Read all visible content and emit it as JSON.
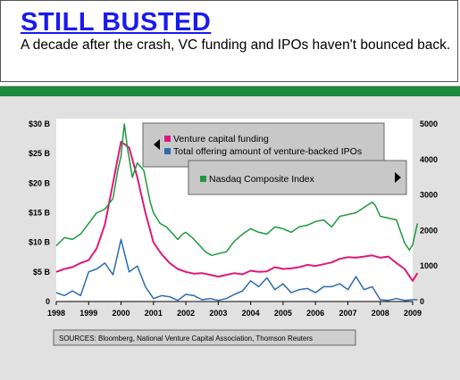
{
  "header": {
    "title": "STILL BUSTED",
    "subtitle": "A decade after the crash, VC funding and IPOs haven't bounced back."
  },
  "legend": {
    "vc": "Venture capital funding",
    "ipo": "Total offering amount of venture-backed IPOs",
    "nasdaq": "Nasdaq Composite Index"
  },
  "sources": "SOURCES: Bloomberg, National Venture Capital Association, Thomson Reuters",
  "colors": {
    "vc": "#e0187a",
    "ipo": "#2a6cb0",
    "nasdaq": "#1d9a3e",
    "band": "#1d8a3c",
    "title": "#1a1aee",
    "background": "#e1e1e1"
  },
  "chart_data": {
    "type": "line",
    "x_ticks": [
      "1998",
      "1999",
      "2000",
      "2001",
      "2002",
      "2003",
      "2004",
      "2005",
      "2006",
      "2007",
      "2008",
      "2009"
    ],
    "y_left_ticks": [
      "$30 B",
      "$25 B",
      "$20 B",
      "$15 B",
      "$10 B",
      "$5 B",
      "0"
    ],
    "y_right_ticks": [
      "5000",
      "4000",
      "3000",
      "2000",
      "1000",
      "0"
    ],
    "xlim": [
      1998,
      2009
    ],
    "ylim_left": [
      0,
      30
    ],
    "ylim_right": [
      0,
      5000
    ],
    "series": [
      {
        "name": "Venture capital funding",
        "axis": "left",
        "x": [
          1998.0,
          1998.25,
          1998.5,
          1998.75,
          1999.0,
          1999.25,
          1999.5,
          1999.75,
          2000.0,
          2000.25,
          2000.5,
          2000.75,
          2001.0,
          2001.25,
          2001.5,
          2001.75,
          2002.0,
          2002.25,
          2002.5,
          2002.75,
          2003.0,
          2003.25,
          2003.5,
          2003.75,
          2004.0,
          2004.25,
          2004.5,
          2004.75,
          2005.0,
          2005.25,
          2005.5,
          2005.75,
          2006.0,
          2006.25,
          2006.5,
          2006.75,
          2007.0,
          2007.25,
          2007.5,
          2007.75,
          2008.0,
          2008.25,
          2008.5,
          2008.75,
          2009.0,
          2009.15
        ],
        "values": [
          5.0,
          5.5,
          5.8,
          6.5,
          7.0,
          9.0,
          13.0,
          20.0,
          27.0,
          26.0,
          21.0,
          15.0,
          10.0,
          8.0,
          6.5,
          5.5,
          5.0,
          4.7,
          4.8,
          4.5,
          4.2,
          4.5,
          4.8,
          4.6,
          5.2,
          5.0,
          5.1,
          5.8,
          5.5,
          5.6,
          5.8,
          6.2,
          6.0,
          6.3,
          6.6,
          7.2,
          7.5,
          7.4,
          7.6,
          7.8,
          7.4,
          7.6,
          6.5,
          5.5,
          3.5,
          4.8
        ]
      },
      {
        "name": "Total offering amount of venture-backed IPOs",
        "axis": "left",
        "x": [
          1998.0,
          1998.25,
          1998.5,
          1998.75,
          1999.0,
          1999.25,
          1999.5,
          1999.75,
          2000.0,
          2000.25,
          2000.5,
          2000.75,
          2001.0,
          2001.25,
          2001.5,
          2001.75,
          2002.0,
          2002.25,
          2002.5,
          2002.75,
          2003.0,
          2003.25,
          2003.5,
          2003.75,
          2004.0,
          2004.25,
          2004.5,
          2004.75,
          2005.0,
          2005.25,
          2005.5,
          2005.75,
          2006.0,
          2006.25,
          2006.5,
          2006.75,
          2007.0,
          2007.25,
          2007.5,
          2007.75,
          2008.0,
          2008.25,
          2008.5,
          2008.75,
          2009.0,
          2009.15
        ],
        "values": [
          1.5,
          1.0,
          1.8,
          1.0,
          5.0,
          5.5,
          6.5,
          4.5,
          10.5,
          5.0,
          6.0,
          2.5,
          0.5,
          1.0,
          0.8,
          0.2,
          1.2,
          1.0,
          0.3,
          0.5,
          0.2,
          0.5,
          1.2,
          1.8,
          3.5,
          2.5,
          4.0,
          2.0,
          3.0,
          1.5,
          2.0,
          2.2,
          1.5,
          2.5,
          2.5,
          3.0,
          2.0,
          4.2,
          2.0,
          2.5,
          0.3,
          0.2,
          0.5,
          0.2,
          0.3,
          0.3
        ]
      },
      {
        "name": "Nasdaq Composite Index",
        "axis": "right",
        "x": [
          1998.0,
          1998.25,
          1998.5,
          1998.75,
          1999.0,
          1999.25,
          1999.5,
          1999.75,
          1999.9,
          2000.0,
          2000.1,
          2000.2,
          2000.35,
          2000.5,
          2000.7,
          2000.9,
          2001.0,
          2001.2,
          2001.4,
          2001.6,
          2001.75,
          2001.9,
          2002.0,
          2002.2,
          2002.4,
          2002.6,
          2002.8,
          2003.0,
          2003.25,
          2003.5,
          2003.75,
          2004.0,
          2004.25,
          2004.5,
          2004.75,
          2005.0,
          2005.25,
          2005.5,
          2005.75,
          2006.0,
          2006.25,
          2006.5,
          2006.75,
          2007.0,
          2007.25,
          2007.5,
          2007.75,
          2007.85,
          2008.0,
          2008.25,
          2008.5,
          2008.75,
          2008.9,
          2009.0,
          2009.15
        ],
        "values": [
          1570,
          1800,
          1750,
          1900,
          2200,
          2500,
          2600,
          2900,
          3700,
          4100,
          5000,
          4300,
          3500,
          3900,
          3700,
          2800,
          2500,
          2200,
          2100,
          1900,
          1750,
          1900,
          1950,
          1800,
          1600,
          1400,
          1300,
          1350,
          1400,
          1700,
          1900,
          2050,
          1950,
          1900,
          2100,
          2050,
          1950,
          2100,
          2150,
          2250,
          2300,
          2100,
          2400,
          2450,
          2500,
          2650,
          2800,
          2700,
          2400,
          2350,
          2300,
          1650,
          1450,
          1600,
          2200
        ]
      }
    ]
  }
}
